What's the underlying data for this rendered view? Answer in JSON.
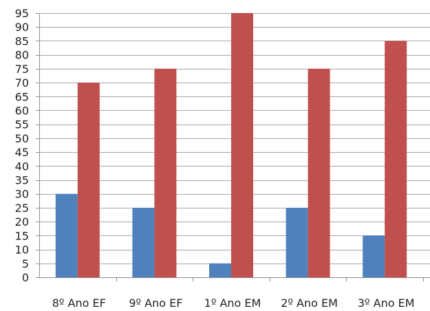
{
  "chart_data": {
    "type": "bar",
    "categories": [
      "8º Ano EF",
      "9º Ano EF",
      "1º Ano EM",
      "2º Ano EM",
      "3º Ano EM"
    ],
    "series": [
      {
        "values": [
          30,
          25,
          5,
          25,
          15
        ],
        "color": "#4f81bd"
      },
      {
        "values": [
          70,
          75,
          95,
          75,
          85
        ],
        "color": "#c0504d"
      }
    ],
    "yticks": [
      0,
      5,
      10,
      15,
      20,
      25,
      30,
      35,
      40,
      45,
      50,
      55,
      60,
      65,
      70,
      75,
      80,
      85,
      90,
      95
    ],
    "ylim": [
      0,
      95
    ],
    "grid": true,
    "legend": false,
    "title": "",
    "xlabel": "",
    "ylabel": ""
  }
}
